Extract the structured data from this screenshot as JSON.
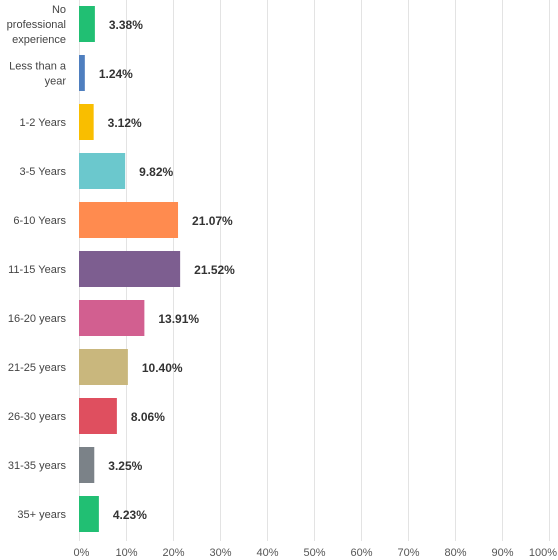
{
  "chart_data": {
    "type": "bar",
    "orientation": "horizontal",
    "categories": [
      "No professional experience",
      "Less than a year",
      "1-2 Years",
      "3-5 Years",
      "6-10 Years",
      "11-15 Years",
      "16-20 years",
      "21-25 years",
      "26-30 years",
      "31-35 years",
      "35+ years"
    ],
    "category_lines": [
      [
        "No",
        "professional",
        "experience"
      ],
      [
        "Less than a",
        "year"
      ],
      [
        "1-2 Years"
      ],
      [
        "3-5 Years"
      ],
      [
        "6-10 Years"
      ],
      [
        "11-15 Years"
      ],
      [
        "16-20 years"
      ],
      [
        "21-25 years"
      ],
      [
        "26-30 years"
      ],
      [
        "31-35 years"
      ],
      [
        "35+ years"
      ]
    ],
    "values": [
      3.38,
      1.24,
      3.12,
      9.82,
      21.07,
      21.52,
      13.91,
      10.4,
      8.06,
      3.25,
      4.23
    ],
    "value_labels": [
      "3.38%",
      "1.24%",
      "3.12%",
      "9.82%",
      "21.07%",
      "21.52%",
      "13.91%",
      "10.40%",
      "8.06%",
      "3.25%",
      "4.23%"
    ],
    "colors": [
      "#21bf73",
      "#4f7fbf",
      "#f9be00",
      "#6bc8cd",
      "#ff8b4f",
      "#7d5e90",
      "#d25f90",
      "#c9b77d",
      "#df4f5f",
      "#7b8288",
      "#21bf73"
    ],
    "xlim": [
      0,
      100
    ],
    "x_ticks": [
      "0%",
      "10%",
      "20%",
      "30%",
      "40%",
      "50%",
      "60%",
      "70%",
      "80%",
      "90%",
      "100%"
    ],
    "grid": true,
    "title": "",
    "xlabel": "",
    "ylabel": ""
  }
}
